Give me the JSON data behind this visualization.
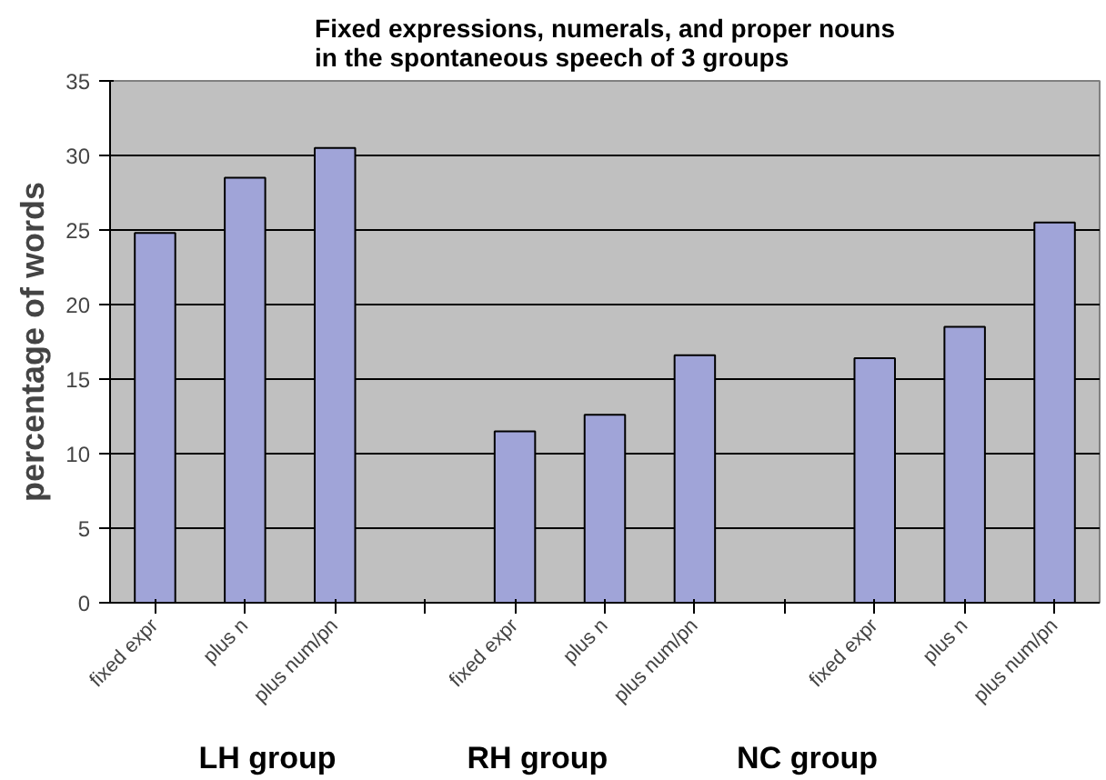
{
  "chart_data": {
    "type": "bar",
    "title": "Fixed expressions, numerals, and proper nouns\nin the spontaneous speech of 3 groups",
    "ylabel": "percentage of words",
    "categories": [
      "fixed expr",
      "plus n",
      "plus num/pn",
      null,
      "fixed expr",
      "plus n",
      "plus num/pn",
      null,
      "fixed expr",
      "plus n",
      "plus num/pn"
    ],
    "values": [
      24.8,
      28.5,
      30.5,
      null,
      11.5,
      12.6,
      16.6,
      null,
      16.4,
      18.5,
      25.5
    ],
    "color": "#a0a4d8",
    "ylim": [
      0,
      35
    ],
    "yticks": [
      0,
      5,
      10,
      15,
      20,
      25,
      30,
      35
    ],
    "grid": "y",
    "annotations": [
      "LH group",
      "RH group",
      "NC group"
    ]
  }
}
